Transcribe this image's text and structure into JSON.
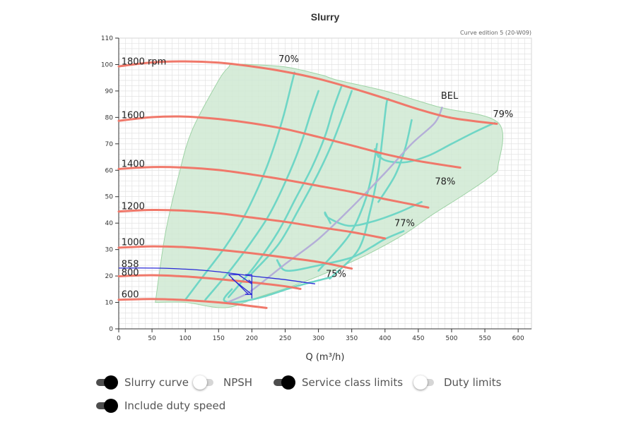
{
  "chart_data": {
    "type": "line",
    "title": "Slurry",
    "edition_note": "Curve edition 5 (20-W09)",
    "xlabel": "Q (m³/h)",
    "ylabel": "",
    "xlim": [
      0,
      620
    ],
    "ylim": [
      0,
      110
    ],
    "x_ticks": [
      "0",
      "50",
      "100",
      "150",
      "200",
      "250",
      "300",
      "350",
      "400",
      "450",
      "500",
      "550",
      "600"
    ],
    "y_ticks": [
      "0",
      "10",
      "20",
      "30",
      "40",
      "50",
      "60",
      "70",
      "80",
      "90",
      "100",
      "110"
    ],
    "grid": true,
    "colors": {
      "speed": "#f0786a",
      "efficiency": "#6fd6c6",
      "bel": "#b4aed8",
      "duty": "#2b2bd8",
      "region_fill": "#cfe9d2",
      "region_stroke": "#9fd3a6",
      "grid": "#dedede"
    },
    "region": [
      [
        55,
        10
      ],
      [
        100,
        10
      ],
      [
        160,
        8
      ],
      [
        210,
        12
      ],
      [
        270,
        17
      ],
      [
        320,
        22
      ],
      [
        380,
        29
      ],
      [
        430,
        36
      ],
      [
        470,
        43
      ],
      [
        520,
        51
      ],
      [
        560,
        58
      ],
      [
        570,
        62
      ],
      [
        570,
        78
      ],
      [
        480,
        84
      ],
      [
        400,
        90
      ],
      [
        330,
        94
      ],
      [
        305,
        96
      ],
      [
        253,
        99
      ],
      [
        200,
        100
      ],
      [
        170,
        100
      ],
      [
        165,
        99
      ],
      [
        150,
        94
      ],
      [
        110,
        75
      ],
      [
        90,
        58
      ],
      [
        70,
        36
      ]
    ],
    "speed_curves": [
      {
        "name": "1800 rpm",
        "points": [
          [
            0,
            99.3
          ],
          [
            50,
            100.8
          ],
          [
            100,
            101.2
          ],
          [
            150,
            100.7
          ],
          [
            200,
            99.3
          ],
          [
            250,
            97.3
          ],
          [
            300,
            94.6
          ],
          [
            350,
            91.1
          ],
          [
            400,
            87.2
          ],
          [
            450,
            83.1
          ],
          [
            500,
            79.8
          ],
          [
            568,
            77.6
          ]
        ]
      },
      {
        "name": "1600",
        "points": [
          [
            0,
            78.7
          ],
          [
            50,
            80.1
          ],
          [
            100,
            80.3
          ],
          [
            150,
            79.4
          ],
          [
            200,
            77.8
          ],
          [
            250,
            75.6
          ],
          [
            300,
            72.6
          ],
          [
            350,
            69.4
          ],
          [
            400,
            66.1
          ],
          [
            450,
            63.5
          ],
          [
            513,
            61
          ]
        ]
      },
      {
        "name": "1400",
        "points": [
          [
            0,
            60.5
          ],
          [
            50,
            61.2
          ],
          [
            100,
            61
          ],
          [
            150,
            60.1
          ],
          [
            200,
            58.4
          ],
          [
            250,
            56.4
          ],
          [
            300,
            54.1
          ],
          [
            350,
            51.8
          ],
          [
            400,
            49.1
          ],
          [
            465,
            45.9
          ]
        ]
      },
      {
        "name": "1200",
        "points": [
          [
            0,
            44.4
          ],
          [
            50,
            45
          ],
          [
            100,
            44.7
          ],
          [
            150,
            43.7
          ],
          [
            200,
            42.1
          ],
          [
            250,
            40.5
          ],
          [
            300,
            38.5
          ],
          [
            350,
            36.6
          ],
          [
            400,
            34.2
          ]
        ]
      },
      {
        "name": "1000",
        "points": [
          [
            0,
            30.7
          ],
          [
            50,
            31.2
          ],
          [
            100,
            30.9
          ],
          [
            150,
            29.9
          ],
          [
            200,
            28.6
          ],
          [
            250,
            27
          ],
          [
            300,
            25.3
          ],
          [
            350,
            22.8
          ]
        ]
      },
      {
        "name": "858",
        "points": [
          [
            0,
            19.9
          ],
          [
            50,
            20.3
          ],
          [
            100,
            19.8
          ],
          [
            150,
            18.8
          ],
          [
            200,
            17.6
          ],
          [
            250,
            16.1
          ],
          [
            273,
            15.1
          ]
        ]
      },
      {
        "name": "600",
        "points": [
          [
            0,
            11
          ],
          [
            50,
            11.3
          ],
          [
            100,
            10.9
          ],
          [
            150,
            10
          ],
          [
            180,
            9.2
          ],
          [
            222,
            7.9
          ]
        ]
      }
    ],
    "efficiency_curves": [
      {
        "name": "70%",
        "points": [
          [
            100,
            11
          ],
          [
            130,
            21
          ],
          [
            160,
            31
          ],
          [
            185,
            41
          ],
          [
            205,
            51
          ],
          [
            222,
            61
          ],
          [
            236,
            71
          ],
          [
            248,
            81
          ],
          [
            257,
            90
          ],
          [
            264,
            97
          ]
        ]
      },
      {
        "name": "",
        "points": [
          [
            130,
            11
          ],
          [
            170,
            23
          ],
          [
            205,
            35
          ],
          [
            230,
            45
          ],
          [
            258,
            60
          ],
          [
            275,
            71
          ],
          [
            289,
            82
          ],
          [
            300,
            90
          ]
        ]
      },
      {
        "name": "",
        "points": [
          [
            165,
            12
          ],
          [
            205,
            24
          ],
          [
            240,
            37
          ],
          [
            265,
            49
          ],
          [
            290,
            61
          ],
          [
            310,
            73
          ],
          [
            322,
            83
          ],
          [
            335,
            92
          ]
        ]
      },
      {
        "name": "",
        "points": [
          [
            200,
            21
          ],
          [
            240,
            32
          ],
          [
            270,
            45
          ],
          [
            300,
            59
          ],
          [
            322,
            71
          ],
          [
            340,
            83
          ],
          [
            350,
            90
          ]
        ]
      },
      {
        "name": "75%",
        "points": [
          [
            170,
            15
          ],
          [
            158,
            11
          ],
          [
            175,
            10
          ],
          [
            215,
            12
          ],
          [
            265,
            16
          ],
          [
            318,
            19.5
          ]
        ]
      },
      {
        "name": "",
        "points": [
          [
            317,
            19
          ],
          [
            360,
            30
          ],
          [
            378,
            45
          ],
          [
            390,
            60
          ],
          [
            396,
            72
          ],
          [
            402,
            85
          ],
          [
            405,
            87
          ]
        ]
      },
      {
        "name": "77%",
        "points": [
          [
            245,
            23
          ],
          [
            238,
            26
          ],
          [
            252,
            22
          ],
          [
            300,
            24
          ],
          [
            350,
            27
          ],
          [
            380,
            31
          ],
          [
            400,
            34
          ],
          [
            428,
            37
          ]
        ]
      },
      {
        "name": "",
        "points": [
          [
            300,
            22
          ],
          [
            345,
            35
          ],
          [
            368,
            47
          ],
          [
            380,
            58
          ],
          [
            388,
            70
          ]
        ]
      },
      {
        "name": "78%",
        "points": [
          [
            318,
            40
          ],
          [
            310,
            44
          ],
          [
            315,
            42
          ],
          [
            345,
            39
          ],
          [
            380,
            40.5
          ],
          [
            420,
            44
          ],
          [
            455,
            48
          ]
        ]
      },
      {
        "name": "",
        "points": [
          [
            390,
            48
          ],
          [
            415,
            58
          ],
          [
            430,
            68
          ],
          [
            440,
            79
          ]
        ]
      },
      {
        "name": "79%",
        "points": [
          [
            390,
            65
          ],
          [
            385,
            68
          ],
          [
            398,
            64
          ],
          [
            430,
            63
          ],
          [
            465,
            65.5
          ],
          [
            500,
            70
          ],
          [
            535,
            74.5
          ],
          [
            565,
            78
          ]
        ]
      }
    ],
    "bel": {
      "name": "BEL",
      "points": [
        [
          163,
          10
        ],
        [
          190,
          13
        ],
        [
          210,
          16.5
        ],
        [
          250,
          24.5
        ],
        [
          300,
          34
        ],
        [
          350,
          46
        ],
        [
          400,
          59
        ],
        [
          440,
          70
        ],
        [
          475,
          78
        ],
        [
          486,
          84
        ]
      ]
    },
    "duty": {
      "speed_line": [
        [
          0,
          23
        ],
        [
          50,
          23
        ],
        [
          100,
          22.6
        ],
        [
          150,
          21.6
        ],
        [
          200,
          20
        ],
        [
          250,
          18.6
        ],
        [
          295,
          17
        ]
      ],
      "limits": [
        [
          [
            165,
            20.5
          ],
          [
            180,
            20.5
          ]
        ],
        [
          [
            165,
            20.5
          ],
          [
            195,
            13
          ]
        ],
        [
          [
            170,
            19
          ],
          [
            200,
            13
          ]
        ],
        [
          [
            180,
            20.5
          ],
          [
            200,
            17
          ]
        ],
        [
          [
            190,
            20.5
          ],
          [
            200,
            20.5
          ]
        ],
        [
          [
            200,
            20.5
          ],
          [
            200,
            11.5
          ]
        ],
        [
          [
            190,
            13
          ],
          [
            200,
            13
          ]
        ],
        [
          [
            195,
            18.5
          ],
          [
            200,
            17.5
          ]
        ]
      ]
    },
    "rpm_labels": [
      {
        "text": "1800 rpm",
        "x": 4,
        "y": 99.5
      },
      {
        "text": "1600",
        "x": 4,
        "y": 79.2
      },
      {
        "text": "1400",
        "x": 4,
        "y": 60.8
      },
      {
        "text": "1200",
        "x": 4,
        "y": 44.7
      },
      {
        "text": "1000",
        "x": 4,
        "y": 31.1
      },
      {
        "text": "858",
        "x": 4,
        "y": 22.8
      },
      {
        "text": "800",
        "x": 4,
        "y": 19.6
      },
      {
        "text": "600",
        "x": 4,
        "y": 11.3
      }
    ],
    "eff_labels": [
      {
        "text": "70%",
        "x": 240,
        "y": 100.4
      },
      {
        "text": "BEL",
        "x": 484,
        "y": 86.5
      },
      {
        "text": "79%",
        "x": 562,
        "y": 79.6
      },
      {
        "text": "78%",
        "x": 475,
        "y": 54.1
      },
      {
        "text": "77%",
        "x": 414,
        "y": 38.3
      },
      {
        "text": "75%",
        "x": 311,
        "y": 19.1
      }
    ]
  },
  "toggles": [
    {
      "label": "Slurry curve",
      "on": true
    },
    {
      "label": "NPSH",
      "on": false
    },
    {
      "label": "Service class limits",
      "on": true
    },
    {
      "label": "Duty limits",
      "on": false
    },
    {
      "label": "Include duty speed",
      "on": true
    }
  ]
}
